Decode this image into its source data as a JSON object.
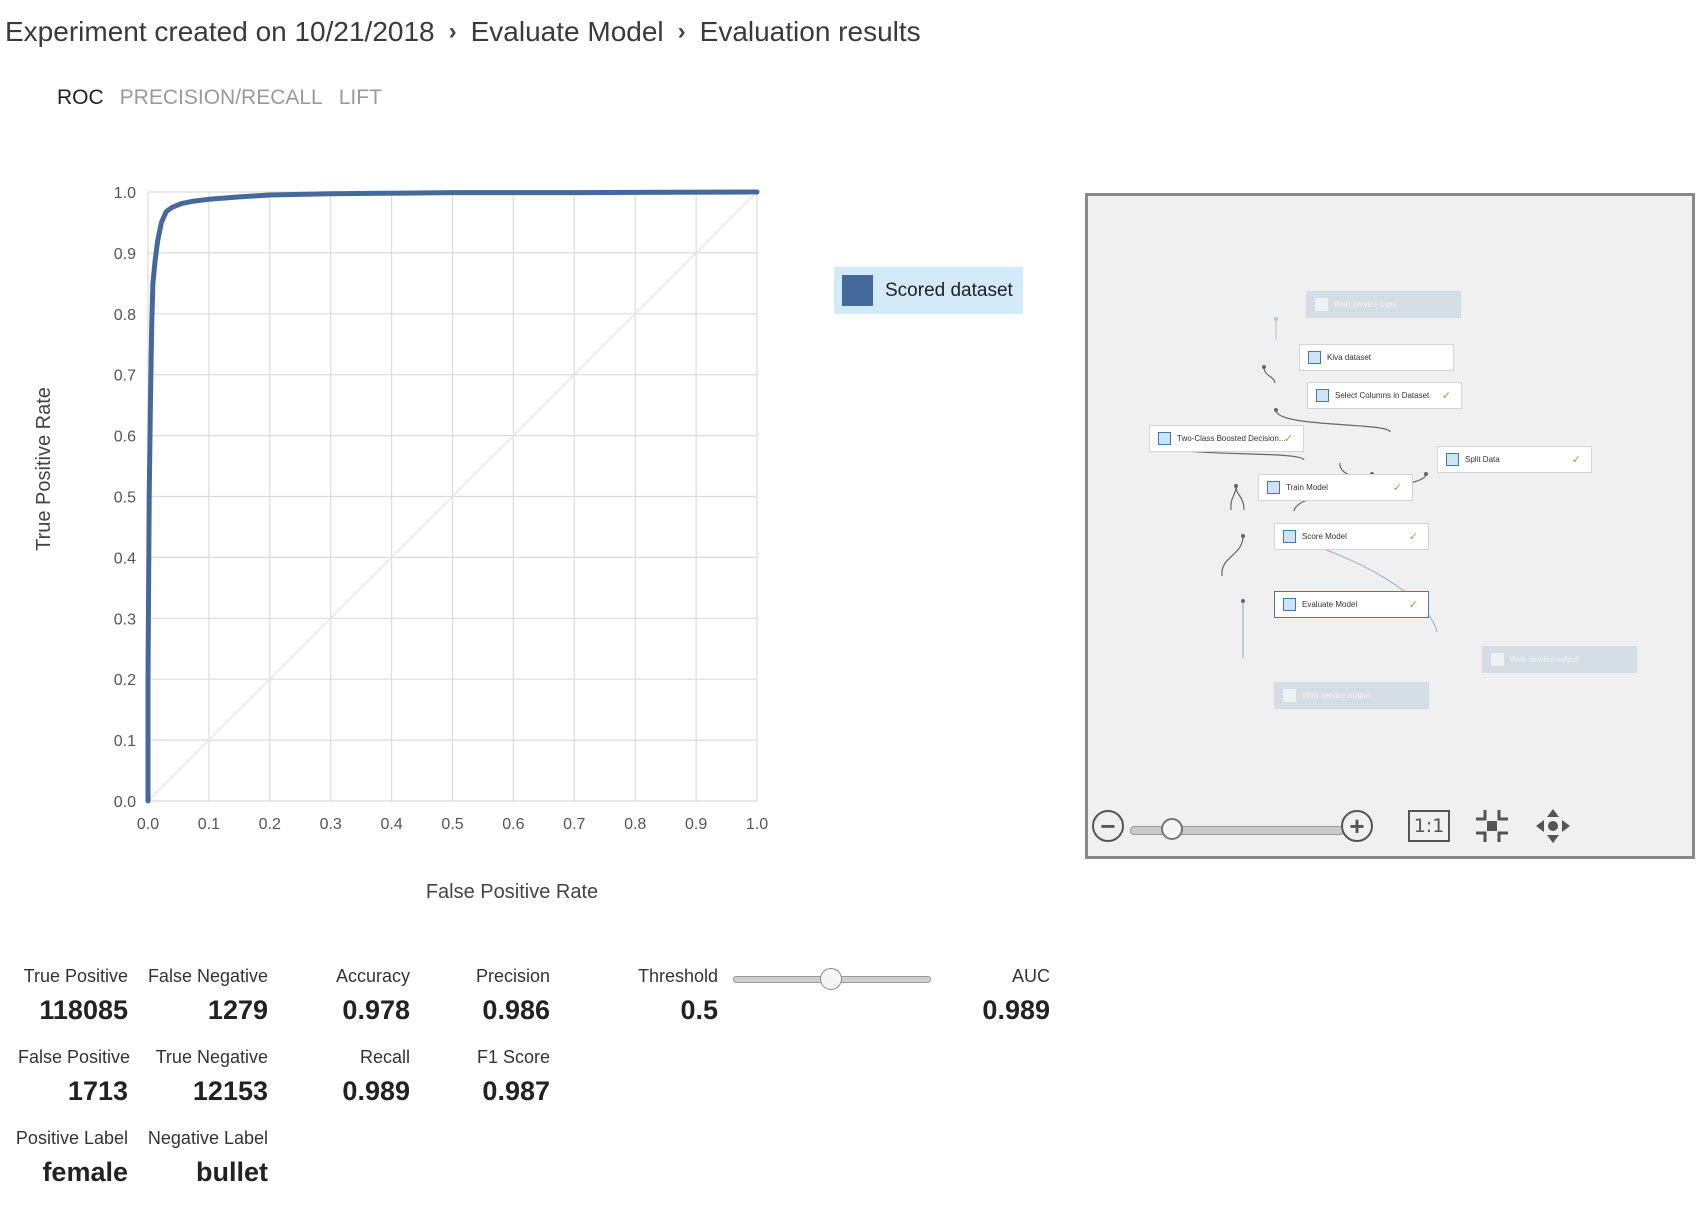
{
  "breadcrumb": {
    "items": [
      "Experiment created on 10/21/2018",
      "Evaluate Model",
      "Evaluation results"
    ],
    "separator": "›"
  },
  "tabs": [
    {
      "label": "ROC",
      "active": true
    },
    {
      "label": "PRECISION/RECALL",
      "active": false
    },
    {
      "label": "LIFT",
      "active": false
    }
  ],
  "legend": {
    "label": "Scored dataset",
    "color": "#46699b"
  },
  "chart_data": {
    "type": "line",
    "xlabel": "False Positive Rate",
    "ylabel": "True Positive Rate",
    "xlim": [
      0.0,
      1.0
    ],
    "ylim": [
      0.0,
      1.0
    ],
    "xticks": [
      "0.0",
      "0.1",
      "0.2",
      "0.3",
      "0.4",
      "0.5",
      "0.6",
      "0.7",
      "0.8",
      "0.9",
      "1.0"
    ],
    "yticks": [
      "0.0",
      "0.1",
      "0.2",
      "0.3",
      "0.4",
      "0.5",
      "0.6",
      "0.7",
      "0.8",
      "0.9",
      "1.0"
    ],
    "grid": true,
    "legend_position": "right",
    "series": [
      {
        "name": "Scored dataset",
        "color": "#46699b",
        "x": [
          0.0,
          0.0,
          0.002,
          0.004,
          0.006,
          0.008,
          0.012,
          0.016,
          0.022,
          0.03,
          0.04,
          0.055,
          0.075,
          0.1,
          0.15,
          0.2,
          0.3,
          0.4,
          0.5,
          0.7,
          1.0
        ],
        "y": [
          0.0,
          0.2,
          0.5,
          0.65,
          0.78,
          0.85,
          0.89,
          0.92,
          0.95,
          0.968,
          0.975,
          0.981,
          0.985,
          0.988,
          0.992,
          0.995,
          0.997,
          0.998,
          0.999,
          0.999,
          1.0
        ]
      },
      {
        "name": "",
        "color": "#e6e6e6",
        "x": [
          0.0,
          1.0
        ],
        "y": [
          0.0,
          1.0
        ]
      }
    ]
  },
  "workflow": {
    "nodes": [
      {
        "id": "web-service-input",
        "label": "Web service input",
        "ghost": true,
        "check": false
      },
      {
        "id": "kiva-dataset",
        "label": "Kiva dataset",
        "ghost": false,
        "check": false
      },
      {
        "id": "select-columns",
        "label": "Select Columns in Dataset",
        "ghost": false,
        "check": true
      },
      {
        "id": "two-class-boosted",
        "label": "Two-Class Boosted Decision...",
        "ghost": false,
        "check": true
      },
      {
        "id": "split-data",
        "label": "Split Data",
        "ghost": false,
        "check": true
      },
      {
        "id": "train-model",
        "label": "Train Model",
        "ghost": false,
        "check": true
      },
      {
        "id": "score-model",
        "label": "Score Model",
        "ghost": false,
        "check": true
      },
      {
        "id": "evaluate-model",
        "label": "Evaluate Model",
        "ghost": false,
        "check": true,
        "selected": true
      },
      {
        "id": "web-service-output-1",
        "label": "Web service output",
        "ghost": true,
        "check": false
      },
      {
        "id": "web-service-output-2",
        "label": "Web service output",
        "ghost": true,
        "check": false
      }
    ],
    "toolbar": {
      "zoom_level": 0.2,
      "one_to_one_label": "1:1"
    }
  },
  "metrics": {
    "true_positive": {
      "label": "True Positive",
      "value": "118085"
    },
    "false_negative": {
      "label": "False Negative",
      "value": "1279"
    },
    "false_positive": {
      "label": "False Positive",
      "value": "1713"
    },
    "true_negative": {
      "label": "True Negative",
      "value": "12153"
    },
    "positive_label": {
      "label": "Positive Label",
      "value": "female"
    },
    "negative_label": {
      "label": "Negative Label",
      "value": "bullet"
    },
    "accuracy": {
      "label": "Accuracy",
      "value": "0.978"
    },
    "recall": {
      "label": "Recall",
      "value": "0.989"
    },
    "precision": {
      "label": "Precision",
      "value": "0.986"
    },
    "f1_score": {
      "label": "F1 Score",
      "value": "0.987"
    },
    "threshold": {
      "label": "Threshold",
      "value": "0.5",
      "slider_fraction": 0.5
    },
    "auc": {
      "label": "AUC",
      "value": "0.989"
    }
  }
}
